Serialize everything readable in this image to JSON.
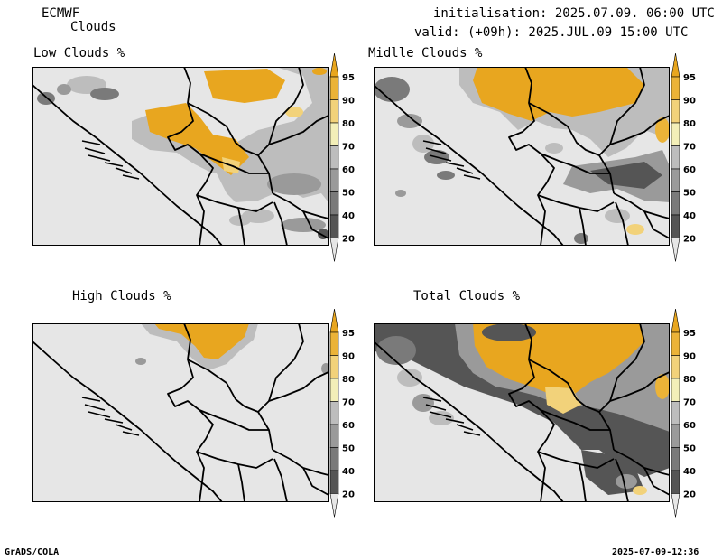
{
  "header": {
    "model": "ECMWF",
    "product": "Clouds",
    "init": "initialisation: 2025.07.09. 06:00 UTC",
    "valid": "valid: (+09h): 2025.JUL.09 15:00 UTC"
  },
  "panels": [
    {
      "id": "low",
      "title": "Low Clouds %"
    },
    {
      "id": "middle",
      "title": "Midlle Clouds %"
    },
    {
      "id": "high",
      "title": "High Clouds %"
    },
    {
      "id": "total",
      "title": "Total Clouds %"
    }
  ],
  "colorbar": {
    "levels": [
      "20",
      "40",
      "50",
      "60",
      "70",
      "80",
      "90",
      "95"
    ],
    "colors": [
      "#555555",
      "#7a7a7a",
      "#9a9a9a",
      "#bdbdbd",
      "#f3efb8",
      "#f2d27a",
      "#ebb338",
      "#e8a61f"
    ],
    "background": "#e6e6e6"
  },
  "footer": {
    "left": "GrADS/COLA",
    "right": "2025-07-09-12:36"
  }
}
